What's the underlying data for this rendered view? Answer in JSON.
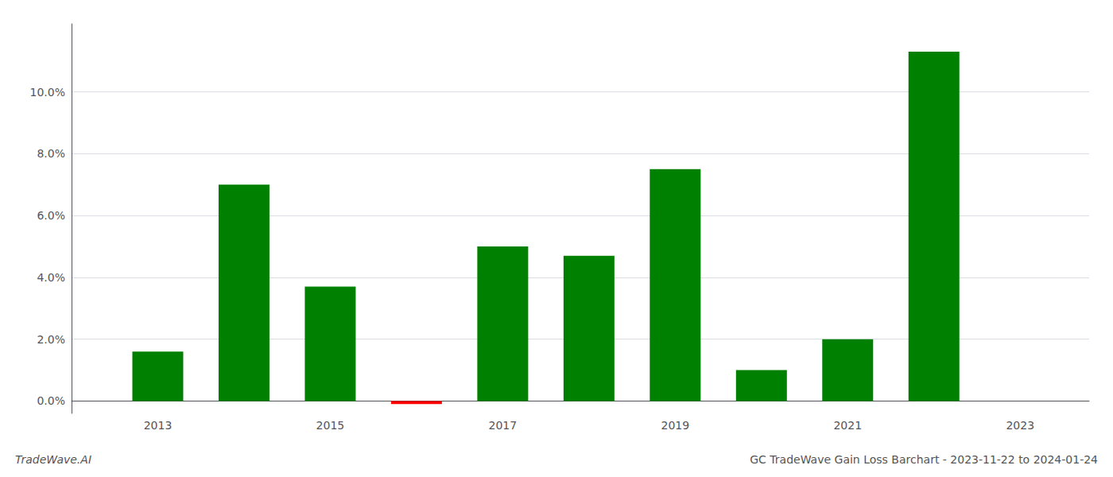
{
  "chart_data": {
    "type": "bar",
    "title": "GC TradeWave Gain Loss Barchart - 2023-11-22 to 2024-01-24",
    "annotations": [
      "TradeWave.AI"
    ],
    "x": [
      2013,
      2014,
      2015,
      2016,
      2017,
      2018,
      2019,
      2020,
      2021,
      2022
    ],
    "values": [
      0.016,
      0.07,
      0.037,
      -0.001,
      0.05,
      0.047,
      0.075,
      0.01,
      0.02,
      0.113
    ],
    "colors": [
      "#008000",
      "#008000",
      "#008000",
      "#ff0000",
      "#008000",
      "#008000",
      "#008000",
      "#008000",
      "#008000",
      "#008000"
    ],
    "xlim": [
      2012.0,
      2023.8
    ],
    "xticks": [
      2013,
      2015,
      2017,
      2019,
      2021,
      2023
    ],
    "ylim": [
      -0.004,
      0.122
    ],
    "yticks": [
      {
        "value": 0.0,
        "label": "0.0%"
      },
      {
        "value": 0.02,
        "label": "2.0%"
      },
      {
        "value": 0.04,
        "label": "4.0%"
      },
      {
        "value": 0.06,
        "label": "6.0%"
      },
      {
        "value": 0.08,
        "label": "8.0%"
      },
      {
        "value": 0.1,
        "label": "10.0%"
      }
    ],
    "grid": true
  }
}
